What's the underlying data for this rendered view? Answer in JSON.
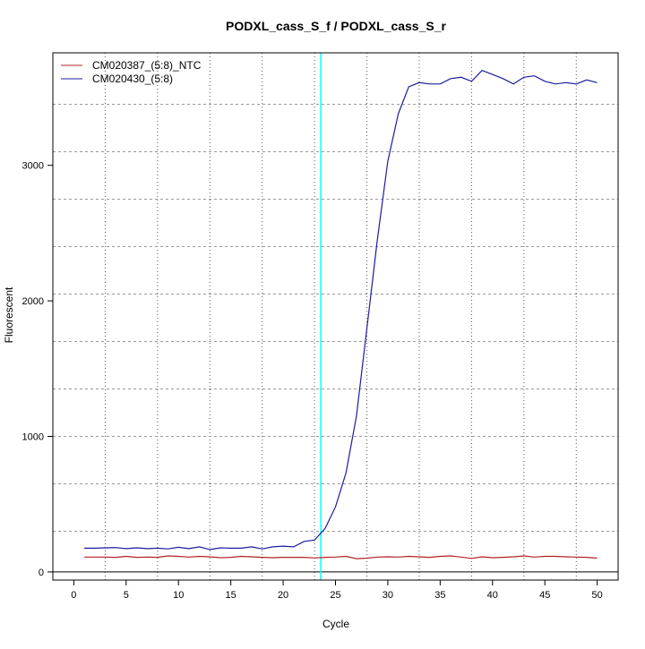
{
  "chart_data": {
    "type": "line",
    "title": "PODXL_cass_S_f / PODXL_cass_S_r",
    "xlabel": "Cycle",
    "ylabel": "Fluorescent",
    "xlim": [
      -2,
      52
    ],
    "ylim": [
      -60,
      3830
    ],
    "xticks": [
      0,
      5,
      10,
      15,
      20,
      25,
      30,
      35,
      40,
      45,
      50
    ],
    "yticks": [
      0,
      1000,
      2000,
      3000
    ],
    "grid": true,
    "legend_position": "top-left",
    "threshold_cycle": 23.6,
    "threshold_color": "#00ffff",
    "baseline_y": 0,
    "x": [
      1,
      2,
      3,
      4,
      5,
      6,
      7,
      8,
      9,
      10,
      11,
      12,
      13,
      14,
      15,
      16,
      17,
      18,
      19,
      20,
      21,
      22,
      23,
      24,
      25,
      26,
      27,
      28,
      29,
      30,
      31,
      32,
      33,
      34,
      35,
      36,
      37,
      38,
      39,
      40,
      41,
      42,
      43,
      44,
      45,
      46,
      47,
      48,
      49,
      50
    ],
    "series": [
      {
        "name": "CM020387_(5:8)_NTC",
        "color": "#b22222",
        "values": [
          110,
          110,
          110,
          108,
          115,
          108,
          110,
          108,
          118,
          115,
          110,
          115,
          112,
          105,
          108,
          115,
          112,
          108,
          105,
          108,
          108,
          108,
          103,
          108,
          110,
          115,
          98,
          102,
          110,
          112,
          110,
          115,
          112,
          108,
          115,
          118,
          110,
          100,
          112,
          105,
          108,
          112,
          118,
          110,
          115,
          115,
          112,
          110,
          108,
          102
        ]
      },
      {
        "name": "CM020430_(5:8)",
        "color": "#1c1ca0",
        "values": [
          175,
          175,
          178,
          180,
          172,
          178,
          172,
          175,
          170,
          182,
          172,
          185,
          165,
          178,
          175,
          175,
          185,
          170,
          185,
          190,
          185,
          225,
          235,
          320,
          480,
          730,
          1150,
          1800,
          2450,
          3030,
          3380,
          3580,
          3610,
          3600,
          3600,
          3640,
          3650,
          3620,
          3700,
          3670,
          3640,
          3600,
          3650,
          3660,
          3620,
          3600,
          3610,
          3600,
          3630,
          3610
        ]
      }
    ]
  }
}
